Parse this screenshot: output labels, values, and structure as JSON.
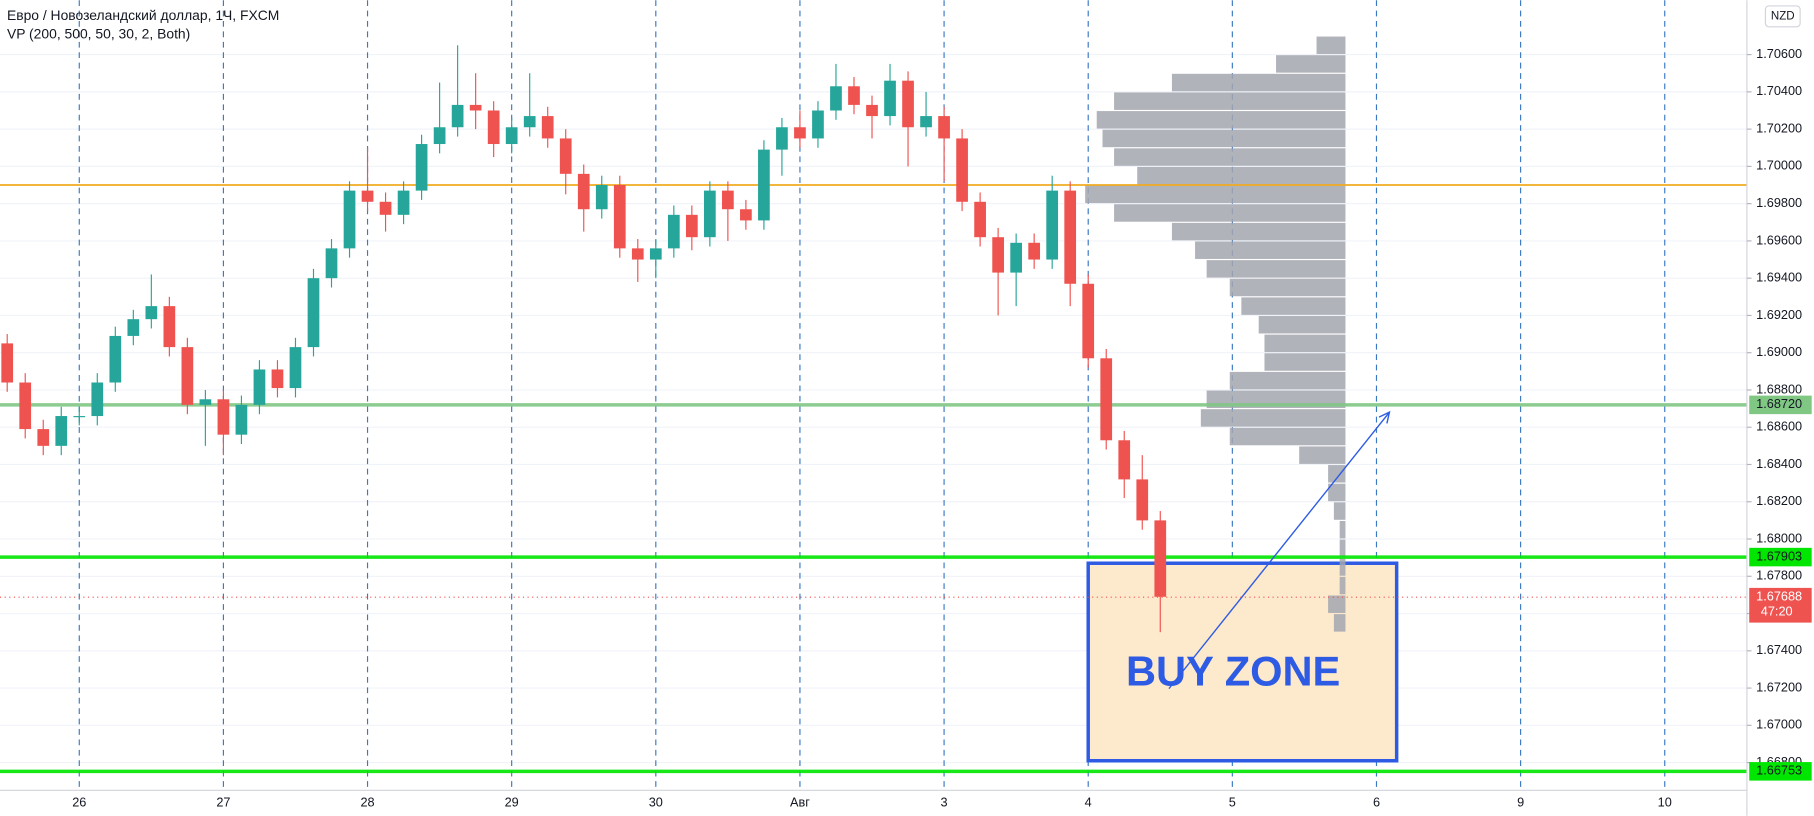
{
  "chart_data": {
    "type": "candlestick",
    "title": "Евро / Новозеландский доллар, 1Ч, FXCM",
    "subtitle": "VP (200, 500, 50, 30, 2, Both)",
    "currency": "NZD",
    "up_color": "#26a69a",
    "down_color": "#ef5350",
    "xlim": [
      0.45,
      12.57
    ],
    "xticks": [
      {
        "value": 1,
        "label": "26"
      },
      {
        "value": 2,
        "label": "27"
      },
      {
        "value": 3,
        "label": "28"
      },
      {
        "value": 4,
        "label": "29"
      },
      {
        "value": 5,
        "label": "30"
      },
      {
        "value": 6,
        "label": "Авг"
      },
      {
        "value": 7,
        "label": "3"
      },
      {
        "value": 8,
        "label": "4"
      },
      {
        "value": 9,
        "label": "5"
      },
      {
        "value": 10,
        "label": "6"
      },
      {
        "value": 11,
        "label": "9"
      },
      {
        "value": 12,
        "label": "10"
      }
    ],
    "ylim": [
      1.66651,
      1.70892
    ],
    "yticks": [
      {
        "value": 1.668,
        "label": "1.66800"
      },
      {
        "value": 1.67,
        "label": "1.67000"
      },
      {
        "value": 1.672,
        "label": "1.67200"
      },
      {
        "value": 1.674,
        "label": "1.67400"
      },
      {
        "value": 1.676,
        "label": "1.67600"
      },
      {
        "value": 1.678,
        "label": "1.67800"
      },
      {
        "value": 1.68,
        "label": "1.68000"
      },
      {
        "value": 1.682,
        "label": "1.68200"
      },
      {
        "value": 1.684,
        "label": "1.68400"
      },
      {
        "value": 1.686,
        "label": "1.68600"
      },
      {
        "value": 1.688,
        "label": "1.68800"
      },
      {
        "value": 1.69,
        "label": "1.69000"
      },
      {
        "value": 1.692,
        "label": "1.69200"
      },
      {
        "value": 1.694,
        "label": "1.69400"
      },
      {
        "value": 1.696,
        "label": "1.69600"
      },
      {
        "value": 1.698,
        "label": "1.69800"
      },
      {
        "value": 1.7,
        "label": "1.70000"
      },
      {
        "value": 1.702,
        "label": "1.70200"
      },
      {
        "value": 1.704,
        "label": "1.70400"
      },
      {
        "value": 1.706,
        "label": "1.70600"
      }
    ],
    "x": [
      0.5,
      0.625,
      0.75,
      0.875,
      1,
      1.125,
      1.25,
      1.375,
      1.5,
      1.625,
      1.75,
      1.875,
      2,
      2.125,
      2.25,
      2.375,
      2.5,
      2.625,
      2.75,
      2.875,
      3,
      3.125,
      3.25,
      3.375,
      3.5,
      3.625,
      3.75,
      3.875,
      4,
      4.125,
      4.25,
      4.375,
      4.5,
      4.625,
      4.75,
      4.875,
      5,
      5.125,
      5.25,
      5.375,
      5.5,
      5.625,
      5.75,
      5.875,
      6,
      6.125,
      6.25,
      6.375,
      6.5,
      6.625,
      6.75,
      6.875,
      7,
      7.125,
      7.25,
      7.375,
      7.5,
      7.625,
      7.75,
      7.875,
      8,
      8.125,
      8.25,
      8.375,
      8.5
    ],
    "open": [
      1.6905,
      1.6884,
      1.6859,
      1.685,
      1.6866,
      1.6866,
      1.6884,
      1.6909,
      1.6918,
      1.6925,
      1.6903,
      1.6872,
      1.6875,
      1.6856,
      1.6872,
      1.6891,
      1.6881,
      1.6903,
      1.694,
      1.6956,
      1.6987,
      1.6981,
      1.6974,
      1.6987,
      1.7012,
      1.7021,
      1.7033,
      1.703,
      1.7012,
      1.7021,
      1.7027,
      1.7015,
      1.6996,
      1.6977,
      1.699,
      1.6956,
      1.695,
      1.6956,
      1.6974,
      1.6962,
      1.6987,
      1.6977,
      1.6971,
      1.7009,
      1.7021,
      1.7015,
      1.703,
      1.7043,
      1.7033,
      1.7027,
      1.7046,
      1.7021,
      1.7027,
      1.7015,
      1.6981,
      1.6962,
      1.6943,
      1.6959,
      1.695,
      1.6987,
      1.6937,
      1.6897,
      1.6853,
      1.6832,
      1.681
    ],
    "high": [
      1.691,
      1.6889,
      1.6864,
      1.6871,
      1.6871,
      1.6889,
      1.6914,
      1.6923,
      1.6942,
      1.693,
      1.6908,
      1.688,
      1.688,
      1.6877,
      1.6896,
      1.6896,
      1.6908,
      1.6945,
      1.6961,
      1.6992,
      1.701,
      1.6986,
      1.6992,
      1.7017,
      1.7045,
      1.7065,
      1.705,
      1.7035,
      1.7026,
      1.705,
      1.7032,
      1.702,
      1.7001,
      1.6995,
      1.6995,
      1.6961,
      1.6961,
      1.6979,
      1.6979,
      1.6992,
      1.6992,
      1.6982,
      1.7014,
      1.7026,
      1.703,
      1.7035,
      1.7055,
      1.7048,
      1.7038,
      1.7055,
      1.7051,
      1.704,
      1.7032,
      1.702,
      1.6986,
      1.6967,
      1.6964,
      1.6964,
      1.6995,
      1.6992,
      1.6942,
      1.6902,
      1.6858,
      1.6845,
      1.6815
    ],
    "low": [
      1.6879,
      1.6854,
      1.6845,
      1.6845,
      1.6861,
      1.6861,
      1.6879,
      1.6904,
      1.6913,
      1.6898,
      1.6867,
      1.685,
      1.6845,
      1.6851,
      1.6867,
      1.6876,
      1.6876,
      1.6898,
      1.6935,
      1.6951,
      1.6976,
      1.6965,
      1.6969,
      1.6982,
      1.7007,
      1.7016,
      1.702,
      1.7005,
      1.7007,
      1.7016,
      1.701,
      1.6985,
      1.6965,
      1.6972,
      1.6951,
      1.6938,
      1.694,
      1.6951,
      1.6955,
      1.6957,
      1.696,
      1.6966,
      1.6966,
      1.6995,
      1.701,
      1.701,
      1.7025,
      1.7028,
      1.7015,
      1.7022,
      1.7,
      1.7016,
      1.6992,
      1.6976,
      1.6957,
      1.692,
      1.6925,
      1.6945,
      1.6945,
      1.6925,
      1.6892,
      1.6848,
      1.6822,
      1.6805,
      1.675
    ],
    "close": [
      1.6884,
      1.6859,
      1.685,
      1.6866,
      1.6866,
      1.6884,
      1.6909,
      1.6918,
      1.6925,
      1.6903,
      1.6872,
      1.6875,
      1.6856,
      1.6872,
      1.6891,
      1.6881,
      1.6903,
      1.694,
      1.6956,
      1.6987,
      1.6981,
      1.6974,
      1.6987,
      1.7012,
      1.7021,
      1.7033,
      1.703,
      1.7012,
      1.7021,
      1.7027,
      1.7015,
      1.6996,
      1.6977,
      1.699,
      1.6956,
      1.695,
      1.6956,
      1.6974,
      1.6962,
      1.6987,
      1.6977,
      1.6971,
      1.7009,
      1.7021,
      1.7015,
      1.703,
      1.7043,
      1.7033,
      1.7027,
      1.7046,
      1.7021,
      1.7027,
      1.7015,
      1.6981,
      1.6962,
      1.6943,
      1.6959,
      1.695,
      1.6987,
      1.6937,
      1.6897,
      1.6853,
      1.6832,
      1.681,
      1.6769
    ],
    "profile": {
      "color": "#a3a6af",
      "prices": [
        1.7065,
        1.7055,
        1.7045,
        1.7035,
        1.7025,
        1.7015,
        1.7005,
        1.6995,
        1.6985,
        1.6975,
        1.6965,
        1.6955,
        1.6945,
        1.6935,
        1.6925,
        1.6915,
        1.6905,
        1.6895,
        1.6885,
        1.6875,
        1.6865,
        1.6855,
        1.6845,
        1.6835,
        1.6825,
        1.6815,
        1.6805,
        1.6795,
        1.6785,
        1.6775,
        1.6765,
        1.6755
      ],
      "volumes": [
        25,
        60,
        150,
        200,
        215,
        210,
        200,
        180,
        225,
        200,
        150,
        130,
        120,
        100,
        90,
        75,
        70,
        70,
        100,
        120,
        125,
        100,
        40,
        15,
        15,
        10,
        5,
        5,
        5,
        5,
        15,
        10
      ]
    },
    "levels": [
      {
        "value": 1.699,
        "color": "#f0a30a"
      },
      {
        "value": 1.6872,
        "color": "#81c784",
        "label": "1.68720"
      },
      {
        "value": 1.67903,
        "color": "#00e600",
        "label": "1.67903"
      },
      {
        "value": 1.66753,
        "color": "#00e600",
        "label": "1.66753"
      }
    ],
    "current_price": {
      "value": 1.67688,
      "label": "1.67688",
      "timer": "47:20",
      "color": "#ef5350"
    },
    "buy_zone": {
      "x": [
        8,
        10.14
      ],
      "y": [
        1.6681,
        1.6787
      ],
      "label": "BUY ZONE",
      "color": "#2d5be3",
      "fill": "#fde9cc"
    },
    "arrow": {
      "x": [
        8.56,
        10.09
      ],
      "y": [
        1.67197,
        1.68681
      ],
      "color": "#2d5be3"
    }
  }
}
